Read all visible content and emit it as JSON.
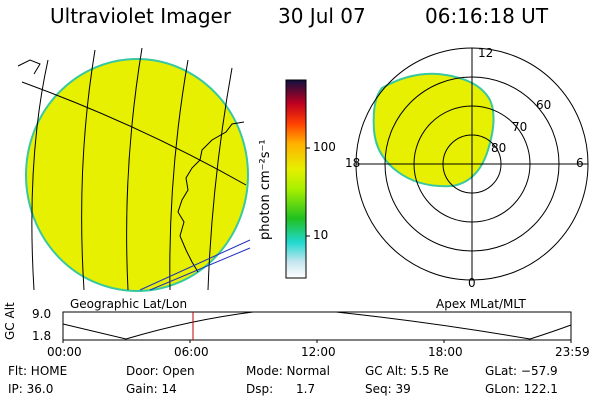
{
  "header": {
    "title": "Ultraviolet Imager",
    "date": "30 Jul 07",
    "time": "06:16:18 UT"
  },
  "left_panel": {
    "label": "Geographic Lat/Lon"
  },
  "colorbar": {
    "unit_label": "photon cm⁻²s⁻¹",
    "ticks": [
      "100",
      "10"
    ]
  },
  "polar_panel": {
    "label": "Apex MLat/MLT",
    "mlt_labels": {
      "top": "12",
      "left": "18",
      "right": "6",
      "bottom": "0"
    },
    "lat_labels": [
      "60",
      "70",
      "80"
    ]
  },
  "altitude_plot": {
    "y_axis_label": "GC Alt",
    "y_max_label": "9.0",
    "y_min_label": "1.8",
    "x_ticks": [
      "00:00",
      "06:00",
      "12:00",
      "18:00",
      "23:59"
    ]
  },
  "info": {
    "flt": "Flt: HOME",
    "ip": "IP: 36.0",
    "door": "Door: Open",
    "gain": "Gain: 14",
    "mode": "Mode: Normal",
    "dsp": "Dsp:      1.7",
    "gcalt": "GC Alt: 5.5 Re",
    "seq": "Seq: 39",
    "glat": "GLat: −57.9",
    "glon": "GLon: 122.1"
  },
  "colors": {
    "aurora_fill": "#e6f000",
    "aurora_edge": "#38c8a0",
    "marker": "#c00000",
    "track": "#2030c0"
  }
}
